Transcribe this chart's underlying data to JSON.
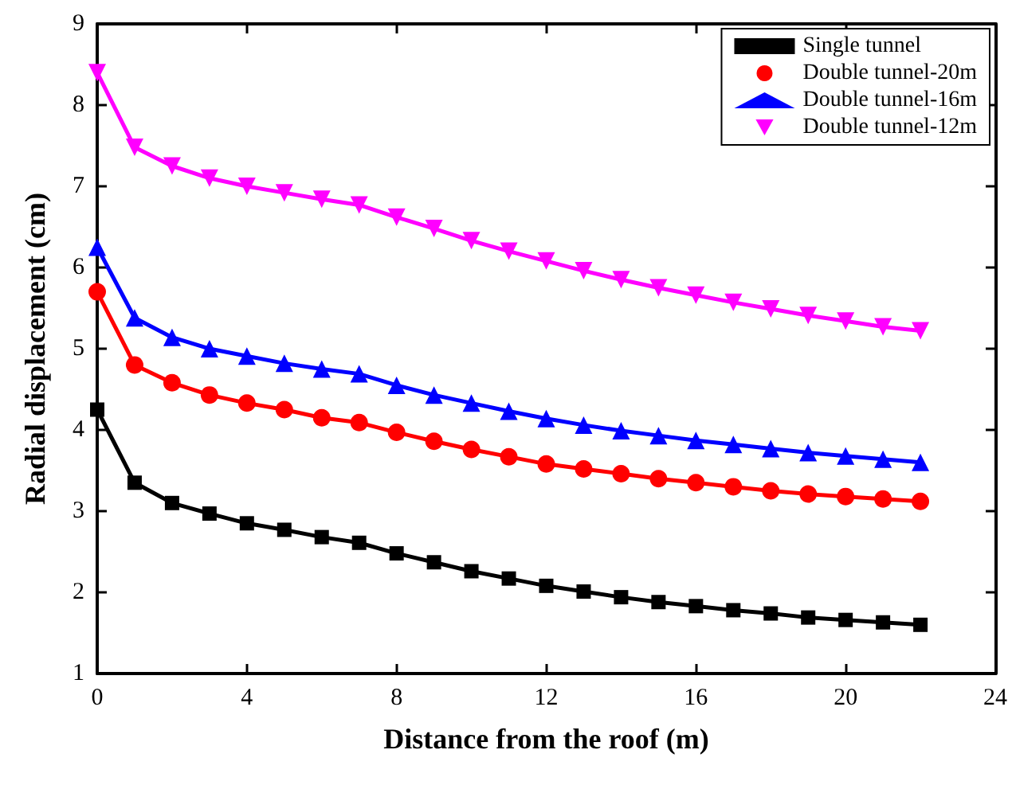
{
  "chart_data": {
    "type": "line",
    "xlabel": "Distance from the roof (m)",
    "ylabel": "Radial displacement (cm)",
    "x": [
      0,
      1,
      2,
      3,
      4,
      5,
      6,
      7,
      8,
      9,
      10,
      11,
      12,
      13,
      14,
      15,
      16,
      17,
      18,
      19,
      20,
      21,
      22
    ],
    "xlim": [
      0,
      24
    ],
    "xticks": [
      0,
      4,
      8,
      12,
      16,
      20,
      24
    ],
    "ylim": [
      1,
      9
    ],
    "yticks": [
      1,
      2,
      3,
      4,
      5,
      6,
      7,
      8,
      9
    ],
    "grid": false,
    "legend": "top right",
    "series": [
      {
        "name": "Single tunnel",
        "color": "#000000",
        "marker": "square",
        "values": [
          4.25,
          3.35,
          3.1,
          2.97,
          2.85,
          2.77,
          2.68,
          2.61,
          2.48,
          2.37,
          2.26,
          2.17,
          2.08,
          2.01,
          1.94,
          1.88,
          1.83,
          1.78,
          1.74,
          1.69,
          1.66,
          1.63,
          1.6
        ]
      },
      {
        "name": "Double tunnel-20m",
        "color": "#ff0000",
        "marker": "circle",
        "values": [
          5.7,
          4.8,
          4.58,
          4.43,
          4.33,
          4.25,
          4.15,
          4.09,
          3.97,
          3.86,
          3.76,
          3.67,
          3.58,
          3.52,
          3.46,
          3.4,
          3.35,
          3.3,
          3.25,
          3.21,
          3.18,
          3.15,
          3.12
        ]
      },
      {
        "name": "Double tunnel-16m",
        "color": "#0000ff",
        "marker": "triangle",
        "values": [
          6.25,
          5.38,
          5.14,
          5.0,
          4.91,
          4.82,
          4.75,
          4.69,
          4.55,
          4.43,
          4.33,
          4.23,
          4.14,
          4.06,
          3.99,
          3.93,
          3.87,
          3.82,
          3.77,
          3.72,
          3.68,
          3.64,
          3.6
        ]
      },
      {
        "name": "Double tunnel-12m",
        "color": "#ff00ff",
        "marker": "triangle-down",
        "values": [
          8.4,
          7.48,
          7.25,
          7.1,
          7.0,
          6.92,
          6.84,
          6.77,
          6.62,
          6.48,
          6.33,
          6.2,
          6.08,
          5.96,
          5.85,
          5.75,
          5.66,
          5.57,
          5.49,
          5.41,
          5.34,
          5.27,
          5.22
        ]
      }
    ]
  }
}
